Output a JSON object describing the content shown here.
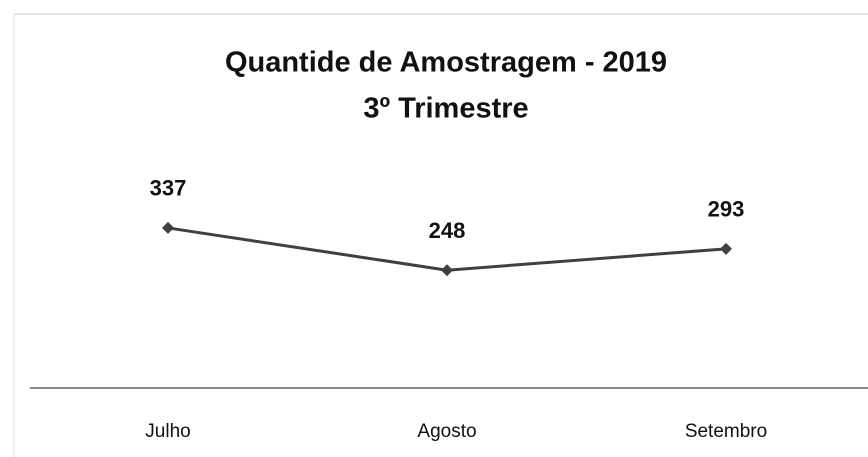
{
  "chart_data": {
    "type": "line",
    "title": "Quantide de Amostragem - 2019",
    "subtitle": "3º Trimestre",
    "categories": [
      "Julho",
      "Agosto",
      "Setembro"
    ],
    "values": [
      337,
      248,
      293
    ],
    "color": "#404040",
    "ylim": [
      0,
      800
    ]
  }
}
